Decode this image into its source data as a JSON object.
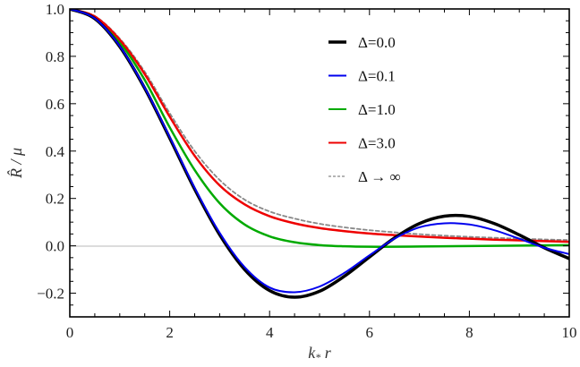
{
  "chart_data": {
    "type": "line",
    "title": "",
    "xlabel": "k* r",
    "ylabel": "R̂ / μ",
    "xlim": [
      0,
      10
    ],
    "ylim": [
      -0.3,
      1.0
    ],
    "x_ticks": [
      0,
      2,
      4,
      6,
      8,
      10
    ],
    "x_tick_labels": [
      "0",
      "2",
      "4",
      "6",
      "8",
      "10"
    ],
    "y_ticks": [
      -0.2,
      0.0,
      0.2,
      0.4,
      0.6,
      0.8,
      1.0
    ],
    "y_tick_labels": [
      "−0.2",
      "0.0",
      "0.2",
      "0.4",
      "0.6",
      "0.8",
      "1.0"
    ],
    "grid": false,
    "zero_line": true,
    "legend_position": "upper right (inside)",
    "x": [
      0,
      0.5,
      1,
      1.5,
      2,
      2.5,
      3,
      3.5,
      4,
      4.5,
      5,
      5.5,
      6,
      6.5,
      7,
      7.5,
      8,
      8.5,
      9,
      9.5,
      10
    ],
    "series": [
      {
        "name": "Δ=0.0",
        "color": "#000000",
        "width": 3.5,
        "dash": "",
        "values": [
          1.0,
          0.959,
          0.841,
          0.665,
          0.455,
          0.239,
          0.047,
          -0.1,
          -0.189,
          -0.217,
          -0.192,
          -0.128,
          -0.047,
          0.033,
          0.094,
          0.125,
          0.124,
          0.094,
          0.046,
          -0.008,
          -0.054
        ]
      },
      {
        "name": "Δ=0.1",
        "color": "#0000ee",
        "width": 2,
        "dash": "",
        "values": [
          1.0,
          0.96,
          0.843,
          0.668,
          0.46,
          0.245,
          0.055,
          -0.09,
          -0.176,
          -0.196,
          -0.172,
          -0.114,
          -0.04,
          0.03,
          0.078,
          0.095,
          0.09,
          0.066,
          0.03,
          -0.008,
          -0.035
        ]
      },
      {
        "name": "Δ=1.0",
        "color": "#00aa00",
        "width": 2.5,
        "dash": "",
        "values": [
          1.0,
          0.965,
          0.86,
          0.7,
          0.5,
          0.32,
          0.18,
          0.09,
          0.04,
          0.015,
          0.003,
          -0.002,
          -0.004,
          -0.004,
          -0.003,
          -0.002,
          -0.001,
          0.0,
          0.001,
          0.002,
          0.003
        ]
      },
      {
        "name": "Δ=3.0",
        "color": "#ee0000",
        "width": 2.5,
        "dash": "",
        "values": [
          1.0,
          0.968,
          0.87,
          0.725,
          0.545,
          0.38,
          0.255,
          0.175,
          0.125,
          0.095,
          0.075,
          0.062,
          0.052,
          0.045,
          0.039,
          0.034,
          0.03,
          0.026,
          0.023,
          0.02,
          0.017
        ]
      },
      {
        "name": "Δ → ∞",
        "color": "#888888",
        "width": 1.8,
        "dash": "4,3",
        "values": [
          1.0,
          0.97,
          0.875,
          0.735,
          0.56,
          0.4,
          0.278,
          0.195,
          0.145,
          0.115,
          0.093,
          0.078,
          0.066,
          0.057,
          0.049,
          0.043,
          0.038,
          0.034,
          0.03,
          0.027,
          0.024
        ]
      }
    ]
  },
  "legend": {
    "items": [
      {
        "label": "Δ=0.0"
      },
      {
        "label": "Δ=0.1"
      },
      {
        "label": "Δ=1.0"
      },
      {
        "label": "Δ=3.0"
      },
      {
        "label": "Δ → ∞"
      }
    ]
  },
  "axes": {
    "xlabel_main": "k",
    "xlabel_sub": "*",
    "xlabel_tail": " r",
    "ylabel": "R̂ / μ"
  }
}
